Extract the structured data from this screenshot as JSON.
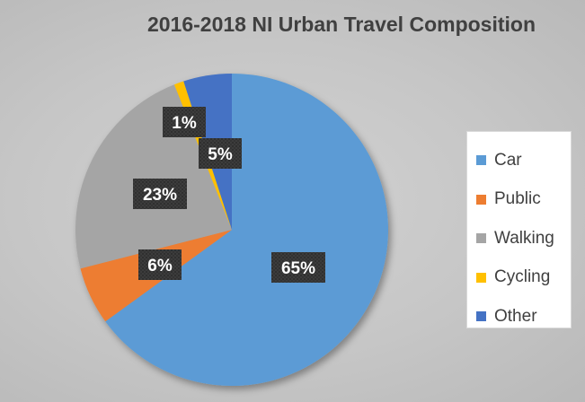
{
  "chart_data": {
    "type": "pie",
    "title": "2016-2018 NI Urban Travel Composition",
    "categories": [
      "Car",
      "Public",
      "Walking",
      "Cycling",
      "Other"
    ],
    "values": [
      65,
      6,
      23,
      1,
      5
    ],
    "data_labels": [
      "65%",
      "6%",
      "23%",
      "1%",
      "5%"
    ],
    "colors": [
      "#5b9bd5",
      "#ed7d31",
      "#a5a5a5",
      "#ffc000",
      "#4472c4"
    ],
    "legend_position": "right",
    "start_angle_deg": 0,
    "direction": "clockwise"
  }
}
